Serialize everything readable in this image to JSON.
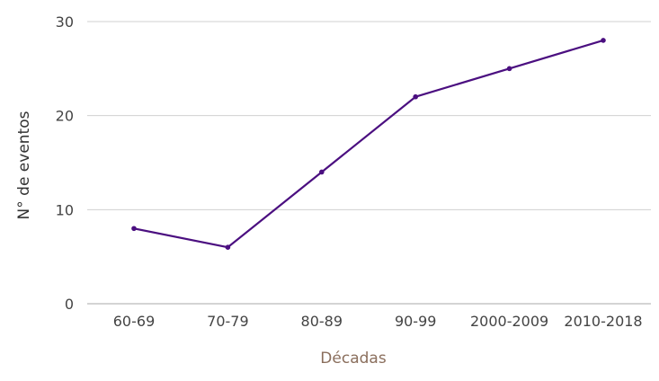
{
  "chart_data": {
    "type": "line",
    "categories": [
      "60-69",
      "70-79",
      "80-89",
      "90-99",
      "2000-2009",
      "2010-2018"
    ],
    "series": [
      {
        "values": [
          8,
          6,
          14,
          22,
          25,
          28
        ]
      }
    ],
    "xlabel": "Décadas",
    "ylabel": "N° de eventos",
    "ylim": [
      0,
      30
    ],
    "yticks": [
      "0",
      "10",
      "20",
      "30"
    ],
    "grid": true,
    "legend": "none"
  },
  "colors": {
    "line": "#4b0f80",
    "grid": "#d0d0d0",
    "xlabel": "#8a6e5c"
  }
}
